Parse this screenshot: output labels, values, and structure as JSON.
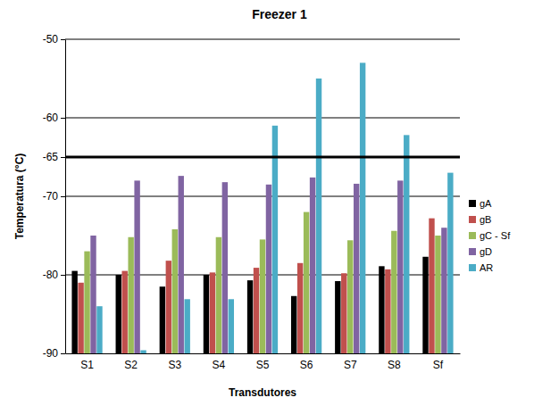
{
  "chart_data": {
    "type": "bar",
    "title": "Freezer 1",
    "x_label": "Transdutores",
    "y_label": "Temperatura (°C)",
    "categories": [
      "S1",
      "S2",
      "S3",
      "S4",
      "S5",
      "S6",
      "S7",
      "S8",
      "Sf"
    ],
    "series": [
      {
        "name": "gA",
        "color": "#000000",
        "values": [
          -79.5,
          -80,
          -81.5,
          -80,
          -80.7,
          -82.7,
          -80.8,
          -78.9,
          -77.7
        ]
      },
      {
        "name": "gB",
        "color": "#c0504d",
        "values": [
          -81,
          -79.5,
          -78.2,
          -79.7,
          -79.1,
          -78.5,
          -79.8,
          -79.3,
          -72.8
        ]
      },
      {
        "name": "gC - Sf",
        "color": "#9bbb59",
        "values": [
          -77,
          -75.2,
          -74.2,
          -75.2,
          -75.5,
          -72,
          -75.6,
          -74.4,
          -75
        ]
      },
      {
        "name": "gD",
        "color": "#8064a2",
        "values": [
          -75,
          -68,
          -67.4,
          -68.2,
          -68.5,
          -67.6,
          -68.4,
          -68,
          -74
        ]
      },
      {
        "name": "AR",
        "color": "#4bacc6",
        "values": [
          -84,
          -89.6,
          -83.1,
          -83.1,
          -61,
          -55,
          -53,
          -62.2,
          -67
        ]
      }
    ],
    "ylim": [
      -90,
      -50
    ],
    "yticks": [
      -90,
      -80,
      -70,
      -65,
      -60,
      -50
    ],
    "reference_line": -65,
    "grid": true,
    "legend": "right"
  }
}
